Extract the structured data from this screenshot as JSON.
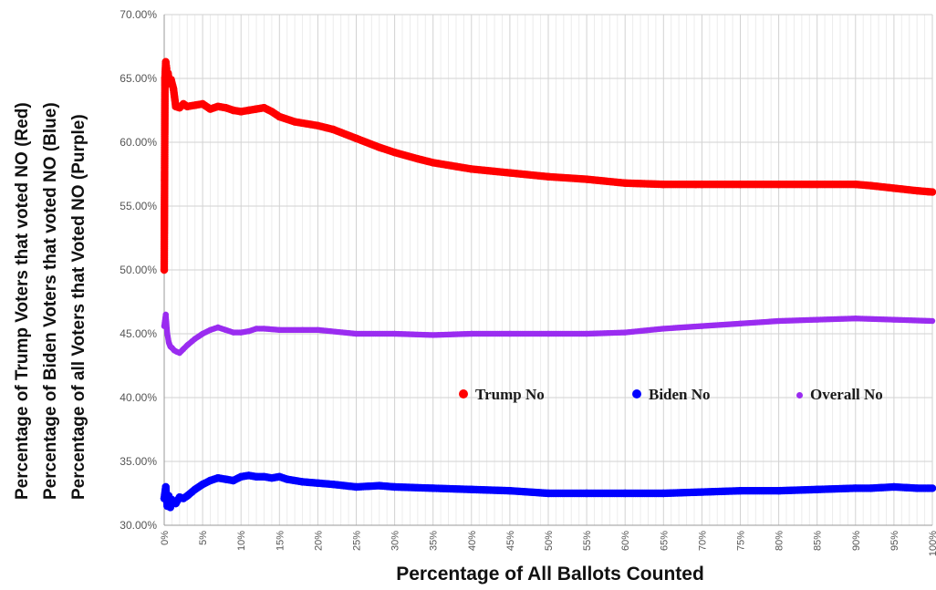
{
  "chart_data": {
    "type": "scatter",
    "xlabel": "Percentage of All Ballots Counted",
    "ylabel_lines": [
      "Percentage of Trump Voters that voted NO (Red)",
      "Percentage of Biden Voters that voted NO (Blue)",
      "Percentage of all Voters that Voted NO (Purple)"
    ],
    "xlim": [
      0,
      100
    ],
    "ylim": [
      30,
      70
    ],
    "x_ticks": [
      0,
      5,
      10,
      15,
      20,
      25,
      30,
      35,
      40,
      45,
      50,
      55,
      60,
      65,
      70,
      75,
      80,
      85,
      90,
      95,
      100
    ],
    "x_tick_labels": [
      "0%",
      "5%",
      "10%",
      "15%",
      "20%",
      "25%",
      "30%",
      "35%",
      "40%",
      "45%",
      "50%",
      "55%",
      "60%",
      "65%",
      "70%",
      "75%",
      "80%",
      "85%",
      "90%",
      "95%",
      "100%"
    ],
    "y_ticks": [
      30,
      35,
      40,
      45,
      50,
      55,
      60,
      65,
      70
    ],
    "y_tick_labels": [
      "30.00%",
      "35.00%",
      "40.00%",
      "45.00%",
      "50.00%",
      "55.00%",
      "60.00%",
      "65.00%",
      "70.00%"
    ],
    "grid": true,
    "legend_position": "right-middle",
    "series": [
      {
        "name": "Trump No",
        "color": "#ff0000",
        "x": [
          0,
          0.1,
          0.2,
          0.3,
          0.4,
          0.5,
          0.7,
          0.9,
          1.2,
          1.5,
          2,
          2.5,
          3,
          4,
          5,
          6,
          7,
          8,
          9,
          10,
          11,
          12,
          13,
          14,
          15,
          17,
          20,
          22,
          25,
          28,
          30,
          33,
          35,
          38,
          40,
          45,
          50,
          55,
          60,
          65,
          70,
          75,
          80,
          85,
          90,
          92,
          95,
          98,
          100
        ],
        "y": [
          50.0,
          65.0,
          66.3,
          65.8,
          64.8,
          65.4,
          64.6,
          64.9,
          64.2,
          62.8,
          62.7,
          63.0,
          62.8,
          62.9,
          63.0,
          62.6,
          62.8,
          62.7,
          62.5,
          62.4,
          62.5,
          62.6,
          62.7,
          62.4,
          62.0,
          61.6,
          61.3,
          61.0,
          60.3,
          59.6,
          59.2,
          58.7,
          58.4,
          58.1,
          57.9,
          57.6,
          57.3,
          57.1,
          56.8,
          56.7,
          56.7,
          56.7,
          56.7,
          56.7,
          56.7,
          56.6,
          56.4,
          56.2,
          56.1
        ]
      },
      {
        "name": "Biden No",
        "color": "#0000ff",
        "x": [
          0,
          0.2,
          0.4,
          0.6,
          0.8,
          1,
          1.5,
          2,
          2.5,
          3,
          4,
          5,
          6,
          7,
          8,
          9,
          10,
          11,
          12,
          13,
          14,
          15,
          16,
          18,
          20,
          22,
          25,
          28,
          30,
          35,
          40,
          45,
          50,
          55,
          60,
          65,
          70,
          75,
          80,
          85,
          90,
          92,
          95,
          98,
          100
        ],
        "y": [
          32.1,
          33.0,
          31.5,
          32.3,
          31.4,
          32.0,
          31.7,
          32.2,
          32.1,
          32.3,
          32.8,
          33.2,
          33.5,
          33.7,
          33.6,
          33.5,
          33.8,
          33.9,
          33.8,
          33.8,
          33.7,
          33.8,
          33.6,
          33.4,
          33.3,
          33.2,
          33.0,
          33.1,
          33.0,
          32.9,
          32.8,
          32.7,
          32.5,
          32.5,
          32.5,
          32.5,
          32.6,
          32.7,
          32.7,
          32.8,
          32.9,
          32.9,
          33.0,
          32.9,
          32.9
        ]
      },
      {
        "name": "Overall No",
        "color": "#9a2cf0",
        "x": [
          0,
          0.2,
          0.4,
          0.6,
          0.8,
          1,
          1.3,
          1.6,
          2,
          2.5,
          3,
          4,
          5,
          6,
          7,
          8,
          9,
          10,
          11,
          12,
          13,
          15,
          18,
          20,
          25,
          30,
          35,
          40,
          45,
          50,
          55,
          60,
          65,
          70,
          75,
          80,
          85,
          90,
          95,
          100
        ],
        "y": [
          45.6,
          46.5,
          45.0,
          44.3,
          44.0,
          43.9,
          43.7,
          43.6,
          43.5,
          43.8,
          44.1,
          44.6,
          45.0,
          45.3,
          45.5,
          45.3,
          45.1,
          45.1,
          45.2,
          45.4,
          45.4,
          45.3,
          45.3,
          45.3,
          45.0,
          45.0,
          44.9,
          45.0,
          45.0,
          45.0,
          45.0,
          45.1,
          45.4,
          45.6,
          45.8,
          46.0,
          46.1,
          46.2,
          46.1,
          46.0
        ]
      }
    ]
  }
}
